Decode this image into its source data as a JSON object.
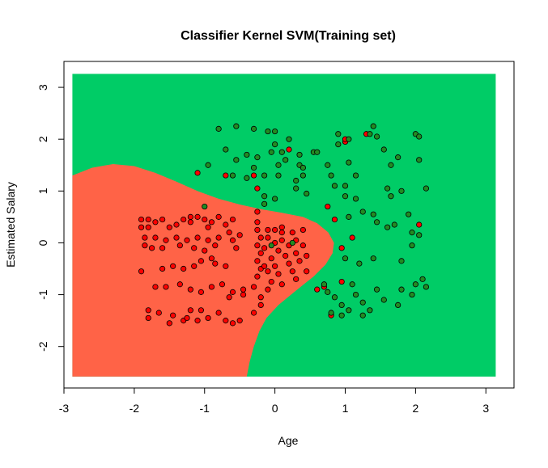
{
  "chart_data": {
    "type": "scatter",
    "title": "Classifier Kernel SVM(Training set)",
    "xlabel": "Age",
    "ylabel": "Estimated Salary",
    "xlim": [
      -3,
      3.4
    ],
    "ylim": [
      -2.8,
      3.5
    ],
    "x_ticks": [
      -3,
      -2,
      -1,
      0,
      1,
      2,
      3
    ],
    "y_ticks": [
      -2,
      -1,
      0,
      1,
      2,
      3
    ],
    "x_tick_labels": [
      "-3",
      "-2",
      "-1",
      "0",
      "1",
      "2",
      "3"
    ],
    "y_tick_labels": [
      "-2",
      "-1",
      "0",
      "1",
      "2",
      "3"
    ],
    "grid": false,
    "legend": "none",
    "grid_range": {
      "x": [
        -2.88,
        3.14
      ],
      "y": [
        -2.58,
        3.26
      ]
    },
    "colors": {
      "region_class_0": "#FF6347",
      "region_class_1": "#00CC66",
      "point_class_0": "#FF0000",
      "point_class_1": "#228B22",
      "point_border": "#000000"
    },
    "decision_boundary": [
      [
        -2.88,
        1.3
      ],
      [
        -2.6,
        1.45
      ],
      [
        -2.3,
        1.52
      ],
      [
        -2.0,
        1.48
      ],
      [
        -1.7,
        1.35
      ],
      [
        -1.4,
        1.18
      ],
      [
        -1.1,
        1.0
      ],
      [
        -0.8,
        0.85
      ],
      [
        -0.5,
        0.74
      ],
      [
        -0.2,
        0.65
      ],
      [
        0.1,
        0.58
      ],
      [
        0.4,
        0.5
      ],
      [
        0.6,
        0.38
      ],
      [
        0.76,
        0.2
      ],
      [
        0.84,
        0.0
      ],
      [
        0.82,
        -0.2
      ],
      [
        0.72,
        -0.42
      ],
      [
        0.55,
        -0.65
      ],
      [
        0.3,
        -0.92
      ],
      [
        0.05,
        -1.2
      ],
      [
        -0.12,
        -1.45
      ],
      [
        -0.22,
        -1.7
      ],
      [
        -0.3,
        -2.0
      ],
      [
        -0.36,
        -2.3
      ],
      [
        -0.4,
        -2.58
      ]
    ],
    "series": [
      {
        "class": 0,
        "points": [
          [
            -1.9,
            0.45
          ],
          [
            -1.9,
            0.3
          ],
          [
            -1.8,
            0.45
          ],
          [
            -1.8,
            0.3
          ],
          [
            -1.7,
            0.4
          ],
          [
            -1.6,
            0.45
          ],
          [
            -1.5,
            0.3
          ],
          [
            -1.4,
            0.35
          ],
          [
            -1.3,
            0.45
          ],
          [
            -1.2,
            0.4
          ],
          [
            -1.1,
            0.5
          ],
          [
            -1.0,
            0.45
          ],
          [
            -0.9,
            0.4
          ],
          [
            -0.8,
            0.5
          ],
          [
            -0.7,
            0.35
          ],
          [
            -0.6,
            0.45
          ],
          [
            -1.2,
            0.5
          ],
          [
            -0.95,
            0.3
          ],
          [
            -0.65,
            0.2
          ],
          [
            -1.85,
            0.1
          ],
          [
            -1.7,
            0.1
          ],
          [
            -1.55,
            0.05
          ],
          [
            -1.4,
            0.1
          ],
          [
            -1.25,
            0.05
          ],
          [
            -1.1,
            0.1
          ],
          [
            -0.95,
            0.05
          ],
          [
            -0.8,
            0.1
          ],
          [
            -0.6,
            0.05
          ],
          [
            -0.5,
            0.15
          ],
          [
            -0.55,
            -0.1
          ],
          [
            -1.85,
            -0.05
          ],
          [
            -1.75,
            -0.1
          ],
          [
            -1.6,
            -0.1
          ],
          [
            -1.35,
            -0.05
          ],
          [
            -1.15,
            -0.1
          ],
          [
            -1.0,
            -0.15
          ],
          [
            -0.85,
            -0.05
          ],
          [
            -1.9,
            -0.55
          ],
          [
            -1.6,
            -0.5
          ],
          [
            -1.45,
            -0.45
          ],
          [
            -1.3,
            -0.5
          ],
          [
            -1.15,
            -0.45
          ],
          [
            -1.05,
            -0.35
          ],
          [
            -0.85,
            -0.4
          ],
          [
            -0.7,
            -0.45
          ],
          [
            -0.9,
            -0.3
          ],
          [
            -1.7,
            -0.85
          ],
          [
            -1.55,
            -0.85
          ],
          [
            -1.35,
            -0.8
          ],
          [
            -1.2,
            -0.9
          ],
          [
            -1.05,
            -0.95
          ],
          [
            -0.9,
            -0.85
          ],
          [
            -0.75,
            -0.8
          ],
          [
            -0.6,
            -0.95
          ],
          [
            -0.45,
            -0.9
          ],
          [
            -1.8,
            -1.3
          ],
          [
            -1.8,
            -1.45
          ],
          [
            -1.65,
            -1.35
          ],
          [
            -1.5,
            -1.55
          ],
          [
            -1.45,
            -1.4
          ],
          [
            -1.3,
            -1.5
          ],
          [
            -1.2,
            -1.3
          ],
          [
            -1.25,
            -1.45
          ],
          [
            -1.05,
            -1.3
          ],
          [
            -0.95,
            -1.45
          ],
          [
            -0.8,
            -1.35
          ],
          [
            -0.7,
            -1.5
          ],
          [
            -0.6,
            -1.55
          ],
          [
            -0.5,
            -1.5
          ],
          [
            -1.1,
            -1.5
          ],
          [
            -0.65,
            -1.05
          ],
          [
            -0.45,
            -1.0
          ],
          [
            -0.3,
            -0.85
          ],
          [
            -0.2,
            -1.05
          ],
          [
            -0.3,
            -1.35
          ],
          [
            -0.2,
            -1.2
          ],
          [
            -0.1,
            -0.9
          ],
          [
            0.1,
            -0.8
          ],
          [
            0.3,
            -0.7
          ],
          [
            0.45,
            -0.55
          ],
          [
            -0.25,
            0.6
          ],
          [
            -0.25,
            0.4
          ],
          [
            -0.25,
            0.25
          ],
          [
            -0.2,
            0.1
          ],
          [
            -0.25,
            -0.05
          ],
          [
            -0.2,
            -0.2
          ],
          [
            -0.25,
            -0.35
          ],
          [
            -0.2,
            -0.5
          ],
          [
            -0.25,
            -0.65
          ],
          [
            -0.15,
            -0.45
          ],
          [
            -0.1,
            0.25
          ],
          [
            -0.1,
            0.1
          ],
          [
            -0.15,
            -0.1
          ],
          [
            -0.05,
            -0.3
          ],
          [
            -0.1,
            -0.55
          ],
          [
            0.0,
            0.25
          ],
          [
            0.0,
            0.0
          ],
          [
            0.05,
            -0.15
          ],
          [
            0.0,
            -0.45
          ],
          [
            0.05,
            -0.6
          ],
          [
            0.1,
            0.2
          ],
          [
            0.1,
            0.05
          ],
          [
            0.15,
            -0.25
          ],
          [
            0.2,
            -0.05
          ],
          [
            0.2,
            -0.4
          ],
          [
            0.25,
            0.2
          ],
          [
            0.3,
            0.05
          ],
          [
            0.3,
            -0.2
          ],
          [
            0.35,
            -0.35
          ],
          [
            0.4,
            0.25
          ],
          [
            0.4,
            -0.05
          ],
          [
            0.45,
            -0.25
          ],
          [
            0.25,
            -0.55
          ],
          [
            -0.05,
            -0.75
          ],
          [
            0.1,
            0.3
          ],
          [
            -0.3,
            1.3
          ],
          [
            -0.7,
            1.3
          ],
          [
            -0.25,
            1.05
          ],
          [
            -1.1,
            1.35
          ],
          [
            0.6,
            -0.9
          ],
          [
            0.75,
            0.7
          ],
          [
            0.8,
            -1.4
          ],
          [
            0.85,
            0.45
          ],
          [
            0.95,
            -0.75
          ],
          [
            0.95,
            -0.1
          ],
          [
            1.0,
            1.95
          ],
          [
            1.0,
            2.0
          ],
          [
            1.1,
            0.1
          ],
          [
            1.3,
            2.1
          ],
          [
            2.05,
            0.35
          ],
          [
            0.2,
            1.8
          ],
          [
            0.7,
            -0.85
          ]
        ]
      },
      {
        "class": 1,
        "points": [
          [
            -0.8,
            2.2
          ],
          [
            -0.55,
            2.25
          ],
          [
            -0.3,
            2.2
          ],
          [
            -0.1,
            2.15
          ],
          [
            0.0,
            2.15
          ],
          [
            0.2,
            2.0
          ],
          [
            0.0,
            1.9
          ],
          [
            -0.05,
            1.75
          ],
          [
            0.1,
            1.75
          ],
          [
            -0.7,
            1.8
          ],
          [
            -0.4,
            1.7
          ],
          [
            -0.55,
            1.6
          ],
          [
            -0.25,
            1.65
          ],
          [
            0.15,
            1.6
          ],
          [
            -0.95,
            1.5
          ],
          [
            -0.3,
            1.45
          ],
          [
            0.05,
            1.5
          ],
          [
            0.35,
            1.5
          ],
          [
            0.4,
            1.45
          ],
          [
            -0.6,
            1.3
          ],
          [
            -0.4,
            1.25
          ],
          [
            -0.15,
            1.3
          ],
          [
            0.05,
            1.3
          ],
          [
            0.3,
            1.2
          ],
          [
            0.4,
            1.3
          ],
          [
            0.3,
            1.05
          ],
          [
            0.45,
            0.95
          ],
          [
            -0.15,
            0.9
          ],
          [
            0.0,
            0.85
          ],
          [
            -1.0,
            0.7
          ],
          [
            0.55,
            1.75
          ],
          [
            0.6,
            1.75
          ],
          [
            0.75,
            1.5
          ],
          [
            0.8,
            1.3
          ],
          [
            0.85,
            1.1
          ],
          [
            0.9,
            1.9
          ],
          [
            0.9,
            2.1
          ],
          [
            1.05,
            2.0
          ],
          [
            1.05,
            1.55
          ],
          [
            1.15,
            1.3
          ],
          [
            1.35,
            2.1
          ],
          [
            1.4,
            2.25
          ],
          [
            1.45,
            2.05
          ],
          [
            1.55,
            1.8
          ],
          [
            1.65,
            1.5
          ],
          [
            1.75,
            1.65
          ],
          [
            2.0,
            2.1
          ],
          [
            2.05,
            2.05
          ],
          [
            2.05,
            1.6
          ],
          [
            2.15,
            1.05
          ],
          [
            1.6,
            1.05
          ],
          [
            1.65,
            0.9
          ],
          [
            1.8,
            1.0
          ],
          [
            1.0,
            1.1
          ],
          [
            1.0,
            0.9
          ],
          [
            1.05,
            0.5
          ],
          [
            1.15,
            0.85
          ],
          [
            1.25,
            0.6
          ],
          [
            1.4,
            0.55
          ],
          [
            1.45,
            0.4
          ],
          [
            1.6,
            0.3
          ],
          [
            1.9,
            0.55
          ],
          [
            1.95,
            0.2
          ],
          [
            2.05,
            0.15
          ],
          [
            1.95,
            -0.05
          ],
          [
            1.7,
            0.35
          ],
          [
            1.8,
            -0.35
          ],
          [
            1.4,
            -0.3
          ],
          [
            1.0,
            -0.3
          ],
          [
            1.2,
            -0.4
          ],
          [
            2.1,
            -0.7
          ],
          [
            2.15,
            -0.85
          ],
          [
            2.0,
            -0.8
          ],
          [
            1.95,
            -1.0
          ],
          [
            1.75,
            -1.2
          ],
          [
            1.45,
            -0.9
          ],
          [
            1.55,
            -1.1
          ],
          [
            1.8,
            -0.9
          ],
          [
            1.35,
            -1.3
          ],
          [
            1.25,
            -1.4
          ],
          [
            1.15,
            -1.0
          ],
          [
            1.05,
            -1.3
          ],
          [
            0.95,
            -1.2
          ],
          [
            0.85,
            -1.05
          ],
          [
            0.8,
            -1.35
          ],
          [
            0.75,
            -0.95
          ],
          [
            0.7,
            -0.8
          ],
          [
            0.95,
            -1.4
          ],
          [
            -0.05,
            -0.05
          ],
          [
            0.25,
            0.0
          ],
          [
            -0.15,
            0.75
          ],
          [
            0.35,
            1.7
          ],
          [
            1.25,
            -1.15
          ],
          [
            1.1,
            -0.8
          ]
        ]
      }
    ]
  }
}
